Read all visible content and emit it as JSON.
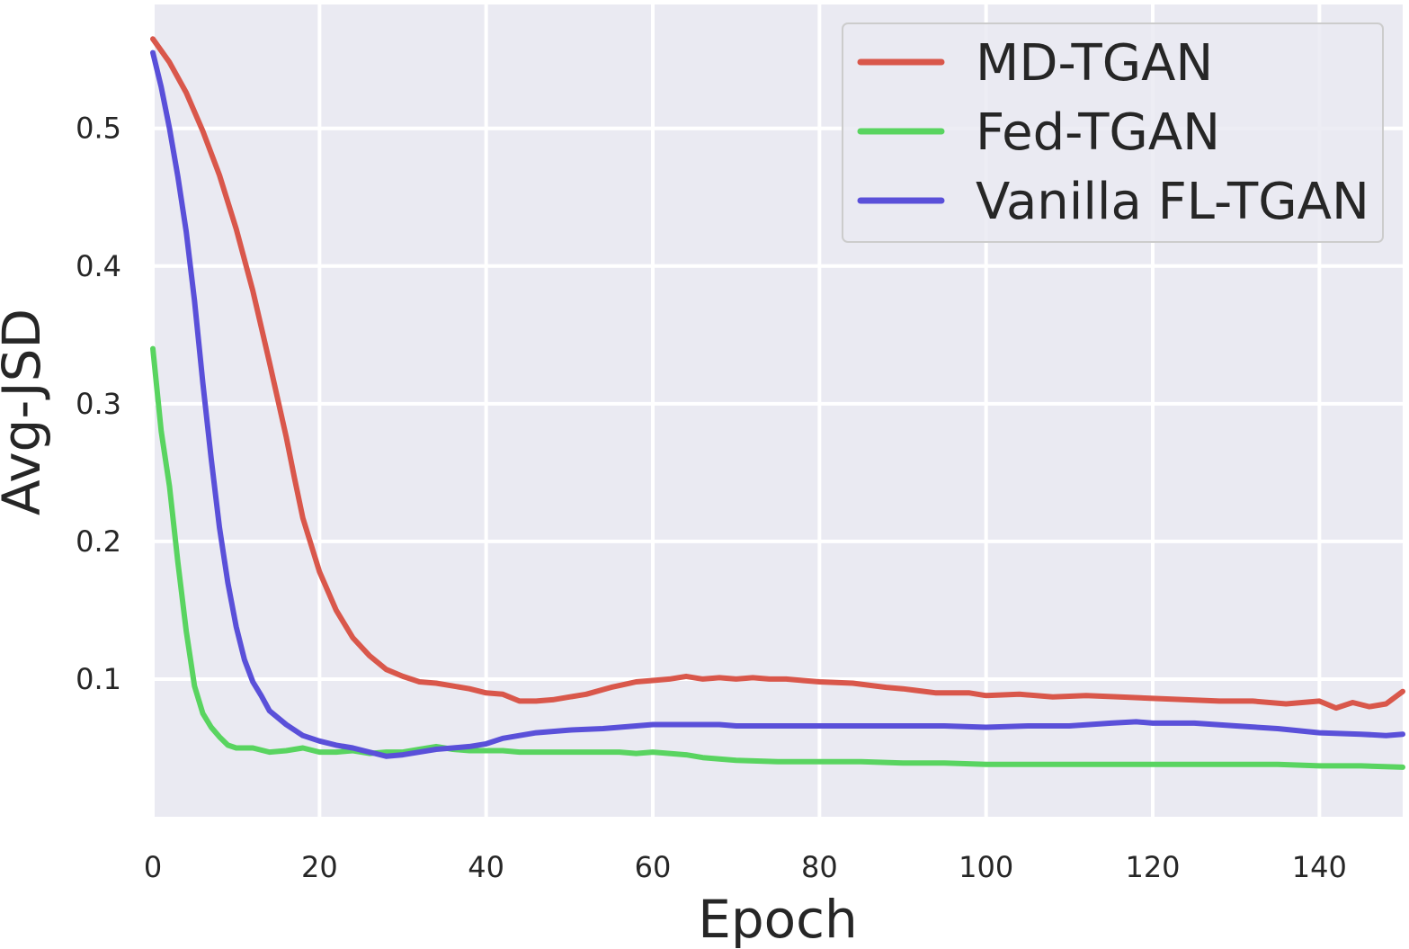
{
  "chart_data": {
    "type": "line",
    "title": "",
    "xlabel": "Epoch",
    "ylabel": "Avg-JSD",
    "xlim": [
      0,
      150
    ],
    "ylim": [
      0,
      0.59
    ],
    "xticks": [
      0,
      20,
      40,
      60,
      80,
      100,
      120,
      140
    ],
    "yticks": [
      0.1,
      0.2,
      0.3,
      0.4,
      0.5
    ],
    "xtick_labels": [
      "0",
      "20",
      "40",
      "60",
      "80",
      "100",
      "120",
      "140"
    ],
    "ytick_labels": [
      "0.1",
      "0.2",
      "0.3",
      "0.4",
      "0.5"
    ],
    "grid": true,
    "legend_position": "top-right",
    "series": [
      {
        "name": "MD-TGAN",
        "color": "#d9574b",
        "x": [
          0,
          2,
          4,
          6,
          8,
          10,
          12,
          14,
          16,
          17,
          18,
          20,
          22,
          24,
          26,
          28,
          30,
          32,
          34,
          36,
          38,
          40,
          42,
          44,
          46,
          48,
          50,
          52,
          55,
          58,
          60,
          62,
          64,
          66,
          68,
          70,
          72,
          74,
          76,
          78,
          80,
          84,
          88,
          90,
          94,
          98,
          100,
          104,
          108,
          112,
          116,
          120,
          124,
          128,
          132,
          136,
          140,
          142,
          144,
          146,
          148,
          150
        ],
        "values": [
          0.565,
          0.548,
          0.526,
          0.498,
          0.466,
          0.427,
          0.382,
          0.33,
          0.276,
          0.246,
          0.217,
          0.178,
          0.15,
          0.13,
          0.117,
          0.107,
          0.102,
          0.098,
          0.097,
          0.095,
          0.093,
          0.09,
          0.089,
          0.084,
          0.084,
          0.085,
          0.087,
          0.089,
          0.094,
          0.098,
          0.099,
          0.1,
          0.102,
          0.1,
          0.101,
          0.1,
          0.101,
          0.1,
          0.1,
          0.099,
          0.098,
          0.097,
          0.094,
          0.093,
          0.09,
          0.09,
          0.088,
          0.089,
          0.087,
          0.088,
          0.087,
          0.086,
          0.085,
          0.084,
          0.084,
          0.082,
          0.084,
          0.079,
          0.083,
          0.08,
          0.082,
          0.091
        ]
      },
      {
        "name": "Fed-TGAN",
        "color": "#59d460",
        "x": [
          0,
          1,
          2,
          3,
          4,
          5,
          6,
          7,
          8,
          9,
          10,
          12,
          14,
          16,
          18,
          20,
          22,
          24,
          26,
          28,
          30,
          32,
          34,
          36,
          38,
          40,
          42,
          44,
          46,
          48,
          50,
          52,
          54,
          56,
          58,
          60,
          62,
          64,
          66,
          68,
          70,
          75,
          80,
          85,
          90,
          95,
          100,
          105,
          110,
          115,
          120,
          125,
          130,
          135,
          140,
          145,
          150
        ],
        "values": [
          0.34,
          0.28,
          0.24,
          0.185,
          0.135,
          0.095,
          0.075,
          0.065,
          0.058,
          0.052,
          0.05,
          0.05,
          0.047,
          0.048,
          0.05,
          0.047,
          0.047,
          0.048,
          0.046,
          0.047,
          0.047,
          0.049,
          0.051,
          0.049,
          0.048,
          0.048,
          0.048,
          0.047,
          0.047,
          0.047,
          0.047,
          0.047,
          0.047,
          0.047,
          0.046,
          0.047,
          0.046,
          0.045,
          0.043,
          0.042,
          0.041,
          0.04,
          0.04,
          0.04,
          0.039,
          0.039,
          0.038,
          0.038,
          0.038,
          0.038,
          0.038,
          0.038,
          0.038,
          0.038,
          0.037,
          0.037,
          0.036
        ]
      },
      {
        "name": "Vanilla FL-TGAN",
        "color": "#5a50d9",
        "x": [
          0,
          1,
          2,
          3,
          4,
          5,
          6,
          7,
          8,
          9,
          10,
          11,
          12,
          13,
          14,
          16,
          18,
          20,
          22,
          24,
          26,
          28,
          30,
          32,
          34,
          36,
          38,
          40,
          42,
          44,
          46,
          48,
          50,
          54,
          58,
          60,
          62,
          64,
          66,
          68,
          70,
          75,
          80,
          85,
          90,
          95,
          100,
          105,
          110,
          115,
          118,
          120,
          125,
          130,
          135,
          140,
          145,
          148,
          150
        ],
        "values": [
          0.555,
          0.53,
          0.5,
          0.465,
          0.425,
          0.375,
          0.315,
          0.26,
          0.21,
          0.17,
          0.138,
          0.114,
          0.098,
          0.088,
          0.077,
          0.067,
          0.059,
          0.055,
          0.052,
          0.05,
          0.047,
          0.044,
          0.045,
          0.047,
          0.049,
          0.05,
          0.051,
          0.053,
          0.057,
          0.059,
          0.061,
          0.062,
          0.063,
          0.064,
          0.066,
          0.067,
          0.067,
          0.067,
          0.067,
          0.067,
          0.066,
          0.066,
          0.066,
          0.066,
          0.066,
          0.066,
          0.065,
          0.066,
          0.066,
          0.068,
          0.069,
          0.068,
          0.068,
          0.066,
          0.064,
          0.061,
          0.06,
          0.059,
          0.06
        ]
      }
    ]
  }
}
